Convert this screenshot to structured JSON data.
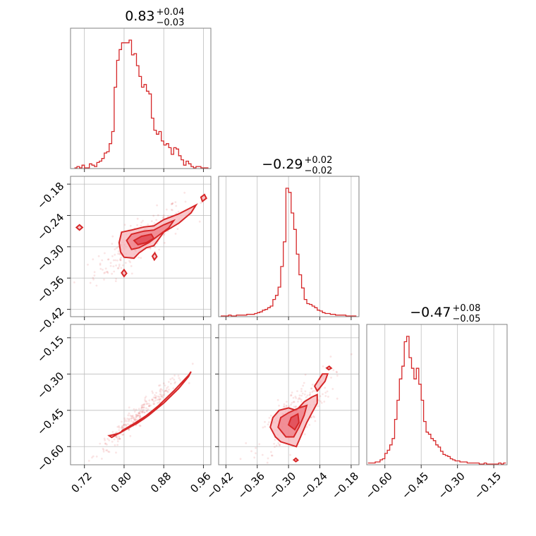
{
  "chart_data": {
    "type": "corner",
    "color": "#d62728",
    "parameters": [
      {
        "title_value": "0.83",
        "err_plus": "+0.04",
        "err_minus": "−0.03",
        "center": 0.83,
        "plus": 0.04,
        "minus": 0.03,
        "range": [
          0.692,
          0.975
        ],
        "ticks": [
          0.72,
          0.8,
          0.88,
          0.96
        ],
        "tick_labels": [
          "0.72",
          "0.80",
          "0.88",
          "0.96"
        ]
      },
      {
        "title_value": "−0.29",
        "err_plus": "+0.02",
        "err_minus": "−0.02",
        "center": -0.29,
        "plus": 0.02,
        "minus": 0.02,
        "range": [
          -0.434,
          -0.165
        ],
        "ticks": [
          -0.42,
          -0.36,
          -0.3,
          -0.24,
          -0.18
        ],
        "tick_labels": [
          "−0.42",
          "−0.36",
          "−0.30",
          "−0.24",
          "−0.18"
        ]
      },
      {
        "title_value": "−0.47",
        "err_plus": "+0.08",
        "err_minus": "−0.05",
        "center": -0.47,
        "plus": 0.08,
        "minus": 0.05,
        "range": [
          -0.675,
          -0.095
        ],
        "ticks": [
          -0.6,
          -0.45,
          -0.3,
          -0.15
        ],
        "tick_labels": [
          "−0.60",
          "−0.45",
          "−0.30",
          "−0.15"
        ]
      }
    ],
    "histograms": [
      {
        "param": 0,
        "bins": [
          0.7,
          0.705,
          0.71,
          0.715,
          0.72,
          0.725,
          0.73,
          0.735,
          0.74,
          0.745,
          0.75,
          0.755,
          0.76,
          0.765,
          0.77,
          0.775,
          0.78,
          0.785,
          0.79,
          0.795,
          0.8,
          0.805,
          0.81,
          0.815,
          0.82,
          0.825,
          0.83,
          0.835,
          0.84,
          0.845,
          0.85,
          0.855,
          0.86,
          0.865,
          0.87,
          0.875,
          0.88,
          0.885,
          0.89,
          0.895,
          0.9,
          0.905,
          0.91,
          0.915,
          0.92,
          0.925,
          0.93,
          0.935,
          0.94,
          0.945,
          0.95,
          0.955,
          0.96,
          0.965,
          0.97
        ],
        "counts": [
          0,
          1,
          0,
          2,
          0,
          0,
          3,
          2,
          1,
          4,
          5,
          7,
          11,
          12,
          18,
          27,
          60,
          80,
          88,
          93,
          93,
          93,
          95,
          84,
          85,
          76,
          68,
          60,
          62,
          57,
          55,
          37,
          28,
          25,
          27,
          20,
          17,
          18,
          15,
          10,
          15,
          14,
          9,
          6,
          2,
          5,
          3,
          1,
          0,
          1,
          1,
          0,
          0,
          0
        ]
      },
      {
        "param": 1,
        "bins": [
          -0.43,
          -0.425,
          -0.42,
          -0.415,
          -0.41,
          -0.405,
          -0.4,
          -0.395,
          -0.39,
          -0.385,
          -0.38,
          -0.375,
          -0.37,
          -0.365,
          -0.36,
          -0.355,
          -0.35,
          -0.345,
          -0.34,
          -0.335,
          -0.33,
          -0.325,
          -0.32,
          -0.315,
          -0.31,
          -0.305,
          -0.3,
          -0.295,
          -0.29,
          -0.285,
          -0.28,
          -0.275,
          -0.27,
          -0.265,
          -0.26,
          -0.255,
          -0.25,
          -0.245,
          -0.24,
          -0.235,
          -0.23,
          -0.225,
          -0.22,
          -0.215,
          -0.21,
          -0.205,
          -0.2,
          -0.195,
          -0.19,
          -0.185,
          -0.18,
          -0.175,
          -0.17
        ],
        "counts": [
          0,
          0,
          0,
          1,
          0,
          0,
          1,
          1,
          1,
          1,
          2,
          2,
          2,
          3,
          4,
          5,
          7,
          8,
          10,
          12,
          20,
          25,
          35,
          60,
          90,
          155,
          150,
          125,
          105,
          75,
          50,
          34,
          20,
          15,
          14,
          12,
          10,
          7,
          6,
          4,
          3,
          3,
          2,
          2,
          1,
          1,
          1,
          1,
          0,
          0,
          0,
          0
        ]
      },
      {
        "param": 2,
        "bins": [
          -0.67,
          -0.66,
          -0.65,
          -0.64,
          -0.63,
          -0.62,
          -0.61,
          -0.6,
          -0.59,
          -0.58,
          -0.57,
          -0.56,
          -0.55,
          -0.54,
          -0.53,
          -0.52,
          -0.51,
          -0.5,
          -0.49,
          -0.48,
          -0.47,
          -0.46,
          -0.45,
          -0.44,
          -0.43,
          -0.42,
          -0.41,
          -0.4,
          -0.39,
          -0.38,
          -0.37,
          -0.36,
          -0.35,
          -0.34,
          -0.33,
          -0.32,
          -0.31,
          -0.3,
          -0.29,
          -0.28,
          -0.27,
          -0.26,
          -0.25,
          -0.24,
          -0.23,
          -0.22,
          -0.21,
          -0.2,
          -0.19,
          -0.18,
          -0.17,
          -0.16,
          -0.15,
          -0.14,
          -0.13,
          -0.12,
          -0.11,
          -0.1
        ],
        "counts": [
          1,
          1,
          1,
          2,
          2,
          4,
          5,
          10,
          13,
          18,
          24,
          42,
          60,
          80,
          92,
          115,
          120,
          100,
          90,
          80,
          90,
          75,
          60,
          40,
          30,
          28,
          24,
          22,
          18,
          16,
          12,
          9,
          8,
          7,
          5,
          4,
          3,
          3,
          2,
          2,
          2,
          1,
          1,
          1,
          1,
          1,
          0,
          0,
          1,
          0,
          0,
          0,
          0,
          0,
          1,
          0,
          1
        ]
      }
    ],
    "pairs": [
      {
        "x_param": 0,
        "y_param": 1,
        "correlation": "positive",
        "levels": 3
      },
      {
        "x_param": 0,
        "y_param": 2,
        "correlation": "strongly positive",
        "levels": 3
      },
      {
        "x_param": 1,
        "y_param": 2,
        "correlation": "positive",
        "levels": 3
      }
    ],
    "grid": true
  }
}
